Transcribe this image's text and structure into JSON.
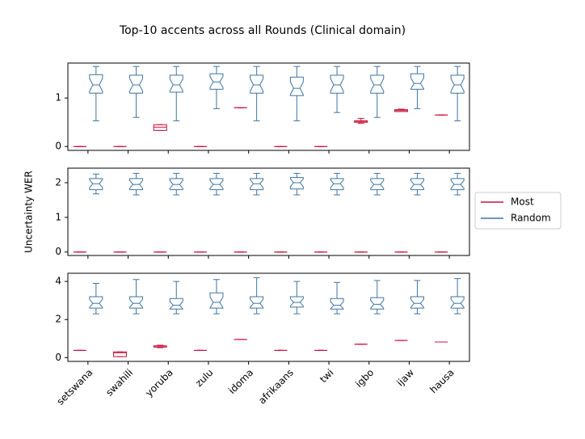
{
  "chart_data": {
    "type": "box",
    "title": "Top-10 accents across all Rounds (Clinical domain)",
    "ylabel": "Uncertainty WER",
    "categories": [
      "setswana",
      "swahili",
      "yoruba",
      "zulu",
      "idoma",
      "afrikaans",
      "twi",
      "igbo",
      "ijaw",
      "hausa"
    ],
    "series": [
      {
        "name": "Most",
        "color": "#c8143c",
        "notch": false
      },
      {
        "name": "Random",
        "color": "#3f74a3",
        "notch": true
      }
    ],
    "legend": "right",
    "panels": [
      {
        "ylim": [
          -0.08,
          1.72
        ],
        "yticks": [
          0,
          1
        ],
        "values": [
          [
            [
              0,
              0,
              0,
              0,
              0
            ],
            [
              0,
              0,
              0,
              0,
              0
            ],
            [
              0.33,
              0.33,
              0.4,
              0.45,
              0.45
            ],
            [
              0,
              0,
              0,
              0,
              0
            ],
            [
              0.8,
              0.8,
              0.8,
              0.8,
              0.8
            ],
            [
              0,
              0,
              0,
              0,
              0
            ],
            [
              0,
              0,
              0,
              0,
              0
            ],
            [
              0.48,
              0.5,
              0.52,
              0.53,
              0.58
            ],
            [
              0.72,
              0.72,
              0.74,
              0.76,
              0.77
            ],
            [
              0.65,
              0.65,
              0.65,
              0.65,
              0.65
            ]
          ],
          [
            [
              0.53,
              1.1,
              1.27,
              1.48,
              1.65
            ],
            [
              0.6,
              1.1,
              1.27,
              1.47,
              1.65
            ],
            [
              0.53,
              1.12,
              1.27,
              1.47,
              1.65
            ],
            [
              0.78,
              1.18,
              1.33,
              1.5,
              1.65
            ],
            [
              0.53,
              1.1,
              1.27,
              1.47,
              1.65
            ],
            [
              0.53,
              1.05,
              1.2,
              1.43,
              1.65
            ],
            [
              0.7,
              1.1,
              1.27,
              1.47,
              1.65
            ],
            [
              0.6,
              1.1,
              1.27,
              1.47,
              1.65
            ],
            [
              0.78,
              1.18,
              1.3,
              1.5,
              1.65
            ],
            [
              0.53,
              1.1,
              1.27,
              1.47,
              1.65
            ]
          ]
        ]
      },
      {
        "ylim": [
          -0.1,
          2.42
        ],
        "yticks": [
          0,
          1,
          2
        ],
        "values": [
          [
            [
              0,
              0,
              0,
              0,
              0
            ],
            [
              0,
              0,
              0,
              0,
              0
            ],
            [
              0,
              0,
              0,
              0,
              0
            ],
            [
              0,
              0,
              0,
              0,
              0
            ],
            [
              0,
              0,
              0,
              0,
              0
            ],
            [
              0,
              0,
              0,
              0,
              0
            ],
            [
              0,
              0,
              0,
              0,
              0
            ],
            [
              0,
              0,
              0,
              0,
              0
            ],
            [
              0,
              0,
              0,
              0,
              0
            ],
            [
              0,
              0,
              0,
              0,
              0
            ]
          ],
          [
            [
              1.68,
              1.8,
              1.97,
              2.12,
              2.25
            ],
            [
              1.65,
              1.8,
              1.95,
              2.12,
              2.27
            ],
            [
              1.65,
              1.8,
              1.95,
              2.12,
              2.27
            ],
            [
              1.65,
              1.8,
              1.95,
              2.12,
              2.27
            ],
            [
              1.65,
              1.8,
              1.97,
              2.12,
              2.27
            ],
            [
              1.65,
              1.82,
              2.0,
              2.15,
              2.27
            ],
            [
              1.65,
              1.8,
              1.97,
              2.12,
              2.27
            ],
            [
              1.65,
              1.8,
              1.95,
              2.12,
              2.27
            ],
            [
              1.65,
              1.8,
              1.95,
              2.12,
              2.27
            ],
            [
              1.65,
              1.8,
              1.95,
              2.12,
              2.27
            ]
          ]
        ]
      },
      {
        "ylim": [
          -0.2,
          4.43
        ],
        "yticks": [
          0,
          2,
          4
        ],
        "values": [
          [
            [
              0.38,
              0.38,
              0.38,
              0.38,
              0.38
            ],
            [
              0.05,
              0.05,
              0.25,
              0.3,
              0.3
            ],
            [
              0.52,
              0.55,
              0.6,
              0.62,
              0.65
            ],
            [
              0.38,
              0.38,
              0.38,
              0.38,
              0.38
            ],
            [
              0.95,
              0.95,
              0.95,
              0.95,
              0.95
            ],
            [
              0.38,
              0.38,
              0.38,
              0.38,
              0.38
            ],
            [
              0.38,
              0.38,
              0.38,
              0.38,
              0.38
            ],
            [
              0.7,
              0.7,
              0.7,
              0.7,
              0.7
            ],
            [
              0.9,
              0.9,
              0.9,
              0.9,
              0.9
            ],
            [
              0.82,
              0.82,
              0.82,
              0.82,
              0.82
            ]
          ],
          [
            [
              2.3,
              2.6,
              2.85,
              3.2,
              3.9
            ],
            [
              2.3,
              2.6,
              2.85,
              3.2,
              4.1
            ],
            [
              2.3,
              2.55,
              2.75,
              3.1,
              4.0
            ],
            [
              2.3,
              2.6,
              2.9,
              3.4,
              4.1
            ],
            [
              2.3,
              2.6,
              2.85,
              3.2,
              4.2
            ],
            [
              2.3,
              2.65,
              2.9,
              3.2,
              4.0
            ],
            [
              2.3,
              2.55,
              2.75,
              3.1,
              3.95
            ],
            [
              2.3,
              2.55,
              2.8,
              3.15,
              4.05
            ],
            [
              2.3,
              2.6,
              2.85,
              3.2,
              4.05
            ],
            [
              2.3,
              2.6,
              2.85,
              3.2,
              4.15
            ]
          ]
        ]
      }
    ]
  }
}
